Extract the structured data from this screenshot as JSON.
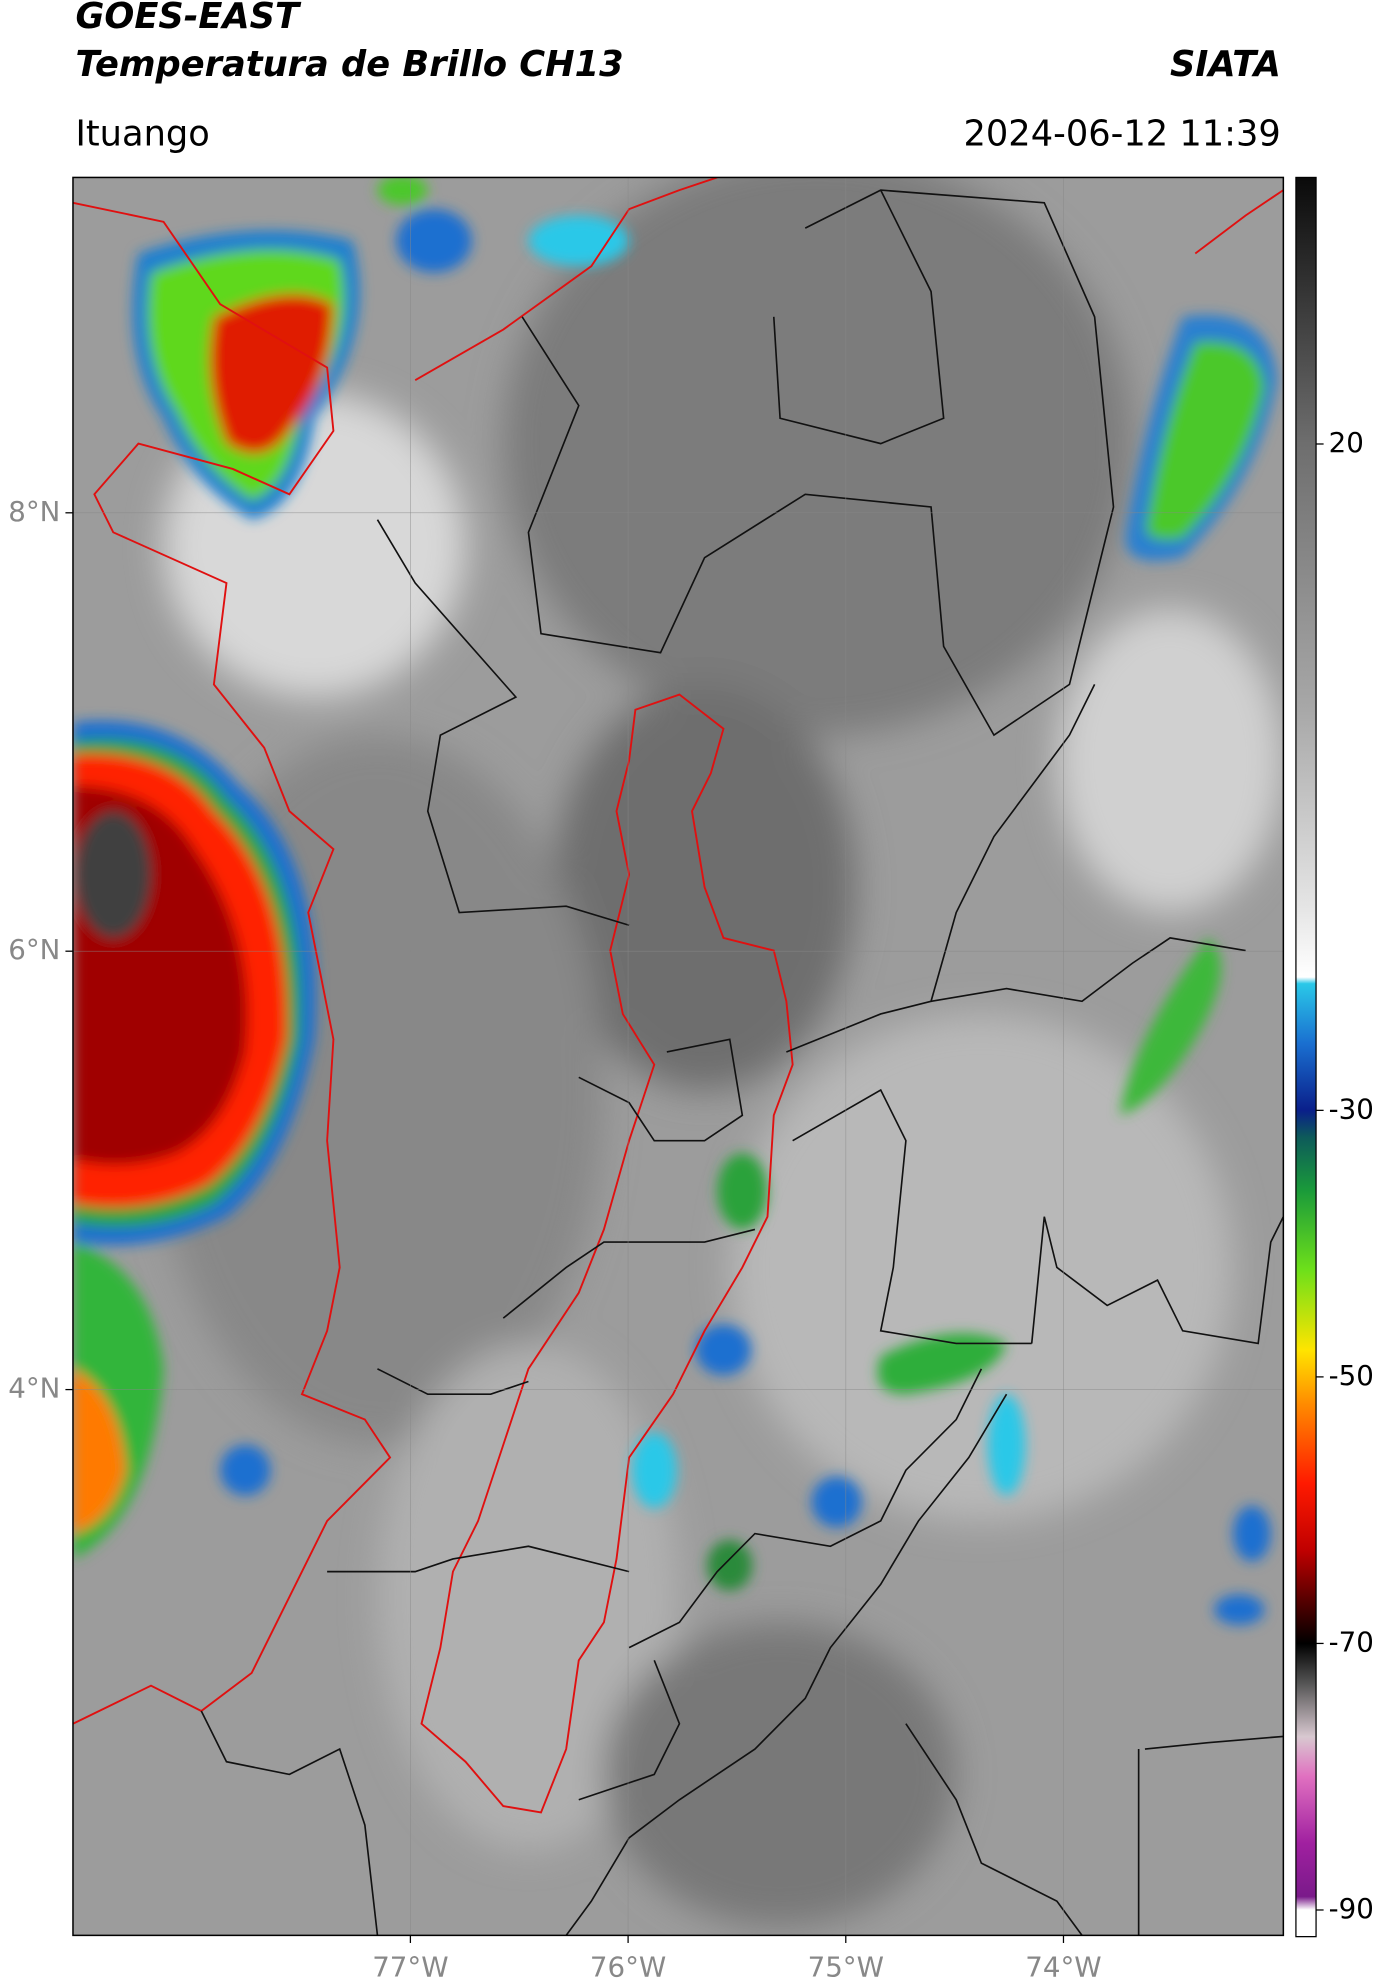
{
  "header": {
    "title": "GOES-EAST",
    "subtitle": "Temperatura de Brillo CH13",
    "source": "SIATA",
    "location": "Ituango",
    "datetime": "2024-06-12 11:39"
  },
  "map": {
    "xlim": [
      -78.55,
      -72.99
    ],
    "ylim": [
      1.51,
      9.53
    ],
    "xticks": [
      {
        "value": -77,
        "label": "77°W"
      },
      {
        "value": -76,
        "label": "76°W"
      },
      {
        "value": -75,
        "label": "75°W"
      },
      {
        "value": -74,
        "label": "74°W"
      }
    ],
    "yticks": [
      {
        "value": 8,
        "label": "8°N"
      },
      {
        "value": 6,
        "label": "6°N"
      },
      {
        "value": 4,
        "label": "4°N"
      }
    ],
    "grid": true
  },
  "colorbar": {
    "lim": [
      40,
      -92
    ],
    "ticks": [
      20,
      -30,
      -50,
      -70,
      -90
    ],
    "colormap": [
      [
        40,
        "#0a0a0a"
      ],
      [
        20,
        "#6e6e6e"
      ],
      [
        0,
        "#a8a8a8"
      ],
      [
        -15,
        "#e6e6e6"
      ],
      [
        -20,
        "#ffffff"
      ],
      [
        -20.5,
        "#2ac8e8"
      ],
      [
        -25,
        "#1a6fd0"
      ],
      [
        -30,
        "#0a1f8a"
      ],
      [
        -32,
        "#0d5a5a"
      ],
      [
        -36,
        "#1a9a3a"
      ],
      [
        -42,
        "#6ee01a"
      ],
      [
        -48,
        "#ffe400"
      ],
      [
        -52,
        "#ff8c00"
      ],
      [
        -58,
        "#ff1a00"
      ],
      [
        -63,
        "#c00000"
      ],
      [
        -67,
        "#500000"
      ],
      [
        -70,
        "#000000"
      ],
      [
        -73,
        "#555555"
      ],
      [
        -77,
        "#d8c8d0"
      ],
      [
        -80,
        "#e070c0"
      ],
      [
        -85,
        "#a020a0"
      ],
      [
        -89,
        "#7a1a8a"
      ],
      [
        -90,
        "#ffffff"
      ]
    ]
  }
}
